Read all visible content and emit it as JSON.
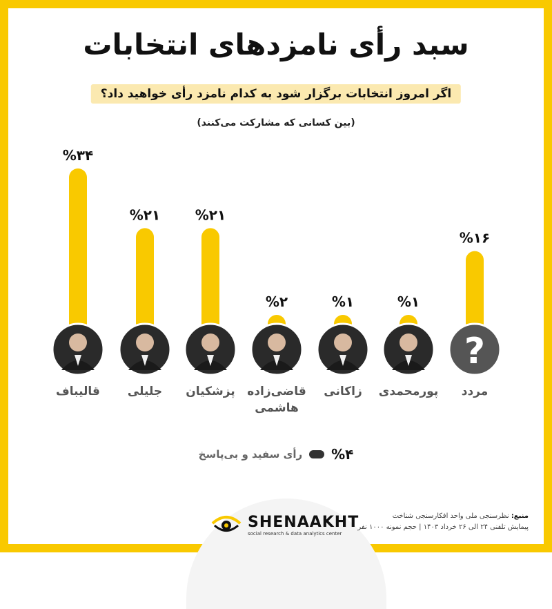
{
  "header": {
    "title": "سبد رأی نامزدهای انتخابات",
    "question": "اگر امروز انتخابات برگزار شود به کدام نامزد رأی خواهید داد؟",
    "subtitle": "(بین کسانی که مشارکت می‌کنند)"
  },
  "colors": {
    "bar": "#f9c900",
    "frame": "#f9c900",
    "avatar": "#2a2a2a",
    "unknown": "#555555"
  },
  "chart_data": {
    "type": "bar",
    "categories": [
      "قالیباف",
      "جلیلی",
      "پزشکیان",
      "قاضی‌زاده هاشمی",
      "زاکانی",
      "پورمحمدی",
      "مردد"
    ],
    "category_lines": [
      [
        "قالیباف"
      ],
      [
        "جلیلی"
      ],
      [
        "پزشکیان"
      ],
      [
        "قاضی‌زاده",
        "هاشمی"
      ],
      [
        "زاکانی"
      ],
      [
        "پورمحمدی"
      ],
      [
        "مردد"
      ]
    ],
    "values": [
      34,
      21,
      21,
      2,
      1,
      1,
      16
    ],
    "value_labels": [
      "%۳۴",
      "%۲۱",
      "%۲۱",
      "%۲",
      "%۱",
      "%۱",
      "%۱۶"
    ],
    "icons": [
      "portrait-icon",
      "portrait-icon",
      "portrait-icon",
      "portrait-icon",
      "portrait-icon",
      "portrait-icon",
      "question-mark-icon"
    ],
    "ylim": [
      0,
      34
    ]
  },
  "legend": {
    "value": "%۴",
    "label": "رأی سفید و بی‌پاسخ"
  },
  "footer": {
    "brand": "SHENAAKHT",
    "tagline": "social research & data analytics center",
    "source_title": "منبع:",
    "source_text": "نظرسنجی ملی واحد افکارسنجی شناخت",
    "source_detail": "پیمایش تلفنی ۲۴ الی ۲۶ خرداد ۱۴۰۳ | حجم نمونه ۱۰۰۰ نفر"
  }
}
